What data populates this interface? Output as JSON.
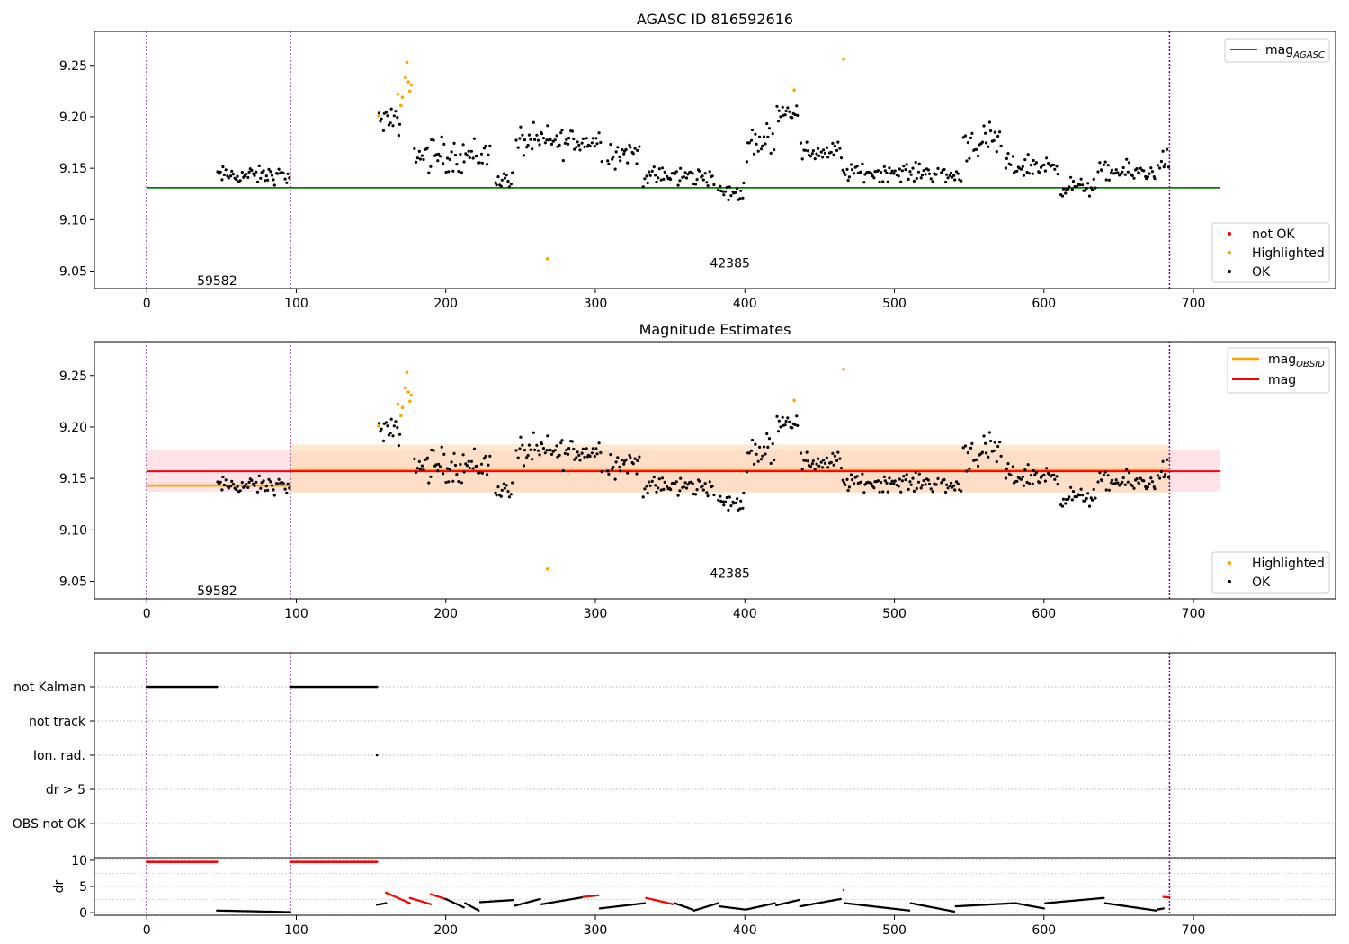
{
  "colors": {
    "ok": "#000000",
    "not_ok": "#ff0000",
    "highlighted": "#ffa500",
    "mag_agasc": "#008000",
    "mag_obsid": "#ffa500",
    "mag": "#ff0000",
    "obs_boundary": "#800080",
    "band_mag": "#ffc0cb",
    "band_obsid": "#ffdab0"
  },
  "chart_data": [
    {
      "type": "scatter",
      "title": "AGASC ID 816592616",
      "xlim": [
        -35,
        795
      ],
      "ylim": [
        9.033,
        9.283
      ],
      "xticks": [
        0,
        100,
        200,
        300,
        400,
        500,
        600,
        700
      ],
      "yticks": [
        9.05,
        9.1,
        9.15,
        9.2,
        9.25
      ],
      "ytick_labels": [
        "9.05",
        "9.10",
        "9.15",
        "9.20",
        "9.25"
      ],
      "obs_boundaries": [
        0,
        96,
        684
      ],
      "obs_labels": [
        {
          "text": "59582",
          "x": 47,
          "y": 9.041
        },
        {
          "text": "42385",
          "x": 390,
          "y": 9.058
        }
      ],
      "lines": [
        {
          "name": "mag_AGASC",
          "y": 9.131,
          "x": [
            0,
            718
          ]
        }
      ],
      "legend_top": [
        "mag",
        "AGASC"
      ],
      "legend_bottom": [
        "not OK",
        "Highlighted",
        "OK"
      ],
      "highlighted": [
        [
          155,
          9.201
        ],
        [
          168,
          9.222
        ],
        [
          170,
          9.211
        ],
        [
          171,
          9.219
        ],
        [
          173,
          9.238
        ],
        [
          174,
          9.253
        ],
        [
          175,
          9.234
        ],
        [
          176,
          9.225
        ],
        [
          177,
          9.231
        ],
        [
          268,
          9.062
        ],
        [
          433,
          9.226
        ],
        [
          466,
          9.256
        ]
      ],
      "segments": [
        [
          47,
          96,
          9.143,
          0.006
        ],
        [
          155,
          170,
          9.195,
          0.009
        ],
        [
          179,
          230,
          9.163,
          0.012
        ],
        [
          233,
          245,
          9.139,
          0.006
        ],
        [
          247,
          305,
          9.176,
          0.011
        ],
        [
          308,
          330,
          9.165,
          0.01
        ],
        [
          332,
          380,
          9.142,
          0.007
        ],
        [
          382,
          400,
          9.126,
          0.006
        ],
        [
          401,
          420,
          9.178,
          0.012
        ],
        [
          421,
          436,
          9.206,
          0.006
        ],
        [
          437,
          465,
          9.166,
          0.007
        ],
        [
          465,
          530,
          9.146,
          0.006
        ],
        [
          531,
          545,
          9.143,
          0.007
        ],
        [
          546,
          572,
          9.175,
          0.012
        ],
        [
          574,
          610,
          9.152,
          0.008
        ],
        [
          611,
          635,
          9.132,
          0.006
        ],
        [
          636,
          675,
          9.146,
          0.007
        ],
        [
          676,
          684,
          9.158,
          0.008
        ]
      ]
    },
    {
      "type": "scatter",
      "title": "Magnitude Estimates",
      "xlim": [
        -35,
        795
      ],
      "ylim": [
        9.033,
        9.283
      ],
      "xticks": [
        0,
        100,
        200,
        300,
        400,
        500,
        600,
        700
      ],
      "yticks": [
        9.05,
        9.1,
        9.15,
        9.2,
        9.25
      ],
      "ytick_labels": [
        "9.05",
        "9.10",
        "9.15",
        "9.20",
        "9.25"
      ],
      "obs_boundaries": [
        0,
        96,
        684
      ],
      "obs_labels": [
        {
          "text": "59582",
          "x": 47,
          "y": 9.041
        },
        {
          "text": "42385",
          "x": 390,
          "y": 9.058
        }
      ],
      "mag_band": {
        "x": [
          0,
          718
        ],
        "y": 9.157,
        "lo": 9.137,
        "hi": 9.178
      },
      "obsid_bands": [
        {
          "x": [
            0,
            96
          ],
          "y": 9.143,
          "lo": 9.141,
          "hi": 9.146
        },
        {
          "x": [
            96,
            684
          ],
          "y": 9.158,
          "lo": 9.136,
          "hi": 9.183
        }
      ],
      "legend_top": [
        "mag",
        "OBSID",
        "mag"
      ],
      "legend_bottom": [
        "Highlighted",
        "OK"
      ]
    },
    {
      "type": "scatter",
      "xlim": [
        -35,
        795
      ],
      "xticks": [
        0,
        100,
        200,
        300,
        400,
        500,
        600,
        700
      ],
      "flags": [
        "not Kalman",
        "not track",
        "Ion. rad.",
        "dr > 5",
        "OBS not OK"
      ],
      "flag_runs": [
        {
          "flag": "not Kalman",
          "x": [
            0,
            47
          ]
        },
        {
          "flag": "not Kalman",
          "x": [
            96,
            154
          ]
        },
        {
          "flag": "Ion. rad.",
          "x": [
            154,
            154
          ]
        }
      ],
      "dr": {
        "ylim": [
          -0.5,
          10.5
        ],
        "yticks": [
          0,
          5,
          10
        ],
        "ytick_labels": [
          "0",
          "5",
          "10"
        ],
        "ylabel": "dr",
        "high_runs": [
          [
            0,
            47,
            9.7
          ],
          [
            96,
            154,
            9.7
          ]
        ],
        "arcs": [
          [
            47,
            96,
            0.4,
            0.1,
            0
          ],
          [
            154,
            160,
            1.5,
            1.8,
            0
          ],
          [
            160,
            176,
            3.8,
            1.8,
            1
          ],
          [
            176,
            190,
            2.8,
            1.6,
            1
          ],
          [
            190,
            200,
            3.5,
            2.6,
            1
          ],
          [
            200,
            212,
            2.6,
            1.0,
            0
          ],
          [
            213,
            222,
            1.8,
            0.4,
            0
          ],
          [
            223,
            245,
            2.0,
            2.4,
            0
          ],
          [
            246,
            263,
            1.3,
            2.6,
            0
          ],
          [
            264,
            291,
            1.6,
            2.9,
            0
          ],
          [
            292,
            302,
            3.0,
            3.3,
            1
          ],
          [
            303,
            333,
            0.8,
            1.8,
            0
          ],
          [
            334,
            352,
            2.8,
            1.6,
            1
          ],
          [
            353,
            365,
            1.8,
            0.6,
            0
          ],
          [
            366,
            382,
            0.4,
            1.8,
            0
          ],
          [
            383,
            400,
            1.2,
            0.6,
            0
          ],
          [
            401,
            420,
            0.6,
            1.8,
            0
          ],
          [
            421,
            436,
            1.4,
            2.4,
            0
          ],
          [
            437,
            464,
            1.2,
            2.6,
            0
          ],
          [
            466,
            466,
            4.3,
            4.3,
            1
          ],
          [
            467,
            510,
            1.8,
            0.4,
            0
          ],
          [
            511,
            540,
            1.8,
            0.2,
            0
          ],
          [
            541,
            580,
            1.2,
            1.8,
            0
          ],
          [
            581,
            600,
            1.8,
            0.8,
            0
          ],
          [
            601,
            640,
            1.8,
            2.8,
            0
          ],
          [
            641,
            675,
            1.8,
            0.4,
            0
          ],
          [
            676,
            680,
            0.6,
            0.8,
            0
          ],
          [
            680,
            684,
            3.0,
            2.9,
            1
          ]
        ]
      }
    }
  ]
}
